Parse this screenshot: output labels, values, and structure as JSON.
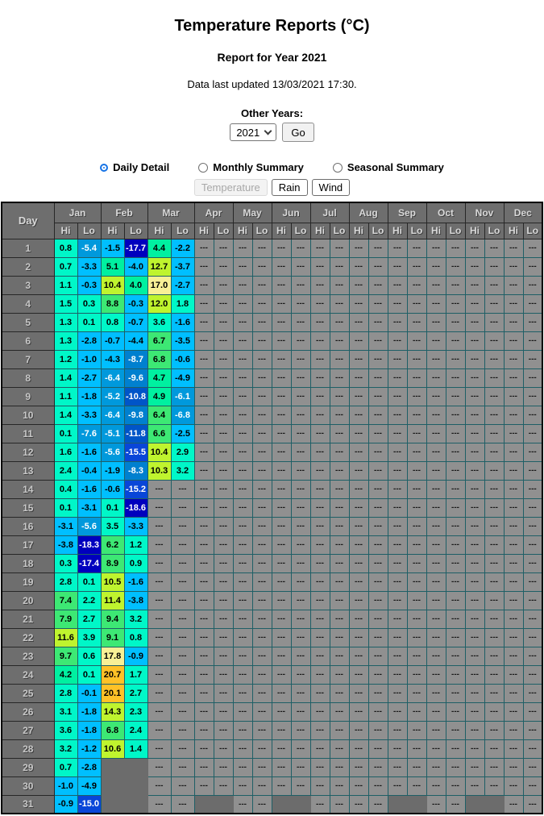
{
  "header": {
    "title": "Temperature Reports (°C)",
    "subtitle": "Report for Year 2021",
    "last_updated": "Data last updated 13/03/2021 17:30."
  },
  "controls": {
    "other_years_label": "Other Years:",
    "year_selected": "2021",
    "go_label": "Go",
    "radios": [
      {
        "label": "Daily Detail",
        "checked": true
      },
      {
        "label": "Monthly Summary",
        "checked": false
      },
      {
        "label": "Seasonal Summary",
        "checked": false
      }
    ],
    "view_buttons": [
      {
        "label": "Temperature",
        "disabled": true
      },
      {
        "label": "Rain",
        "disabled": false
      },
      {
        "label": "Wind",
        "disabled": false
      }
    ]
  },
  "table": {
    "day_label": "Day",
    "months": [
      "Jan",
      "Feb",
      "Mar",
      "Apr",
      "May",
      "Jun",
      "Jul",
      "Aug",
      "Sep",
      "Oct",
      "Nov",
      "Dec"
    ],
    "month_keys": [
      "jan",
      "feb",
      "mar",
      "apr",
      "may",
      "jun",
      "jul",
      "aug",
      "sep",
      "oct",
      "nov",
      "dec"
    ],
    "sub_headers": [
      "Hi",
      "Lo"
    ],
    "no_data_label": "---",
    "blank_days": {
      "feb": [
        29,
        30,
        31
      ],
      "apr": [
        31
      ],
      "jun": [
        31
      ],
      "sep": [
        31
      ],
      "nov": [
        31
      ]
    },
    "color_scale": [
      {
        "min": 20,
        "bg": "#FFC127",
        "fg": "#000000"
      },
      {
        "min": 16,
        "bg": "#F8F096",
        "fg": "#000000"
      },
      {
        "min": 10,
        "bg": "#BFF42E",
        "fg": "#000000"
      },
      {
        "min": 6,
        "bg": "#3DE874",
        "fg": "#000000"
      },
      {
        "min": 4,
        "bg": "#00F0A0",
        "fg": "#000000"
      },
      {
        "min": 0,
        "bg": "#00F7C8",
        "fg": "#000000"
      },
      {
        "min": -5,
        "bg": "#00BFFF",
        "fg": "#000000"
      },
      {
        "min": -8,
        "bg": "#0099DC",
        "fg": "#FFFFFF"
      },
      {
        "min": -10,
        "bg": "#0080CF",
        "fg": "#FFFFFF"
      },
      {
        "min": -13,
        "bg": "#0055C8",
        "fg": "#FFFFFF"
      },
      {
        "min": -16,
        "bg": "#0946D8",
        "fg": "#FFFFFF"
      },
      {
        "min": -99,
        "bg": "#0000BE",
        "fg": "#FFFFFF"
      }
    ],
    "rows": [
      {
        "day": 1,
        "jan": [
          0.8,
          -5.4
        ],
        "feb": [
          -1.5,
          -17.7
        ],
        "mar": [
          4.4,
          -2.2
        ]
      },
      {
        "day": 2,
        "jan": [
          0.7,
          -3.3
        ],
        "feb": [
          5.1,
          -4.0
        ],
        "mar": [
          12.7,
          -3.7
        ]
      },
      {
        "day": 3,
        "jan": [
          1.1,
          -0.3
        ],
        "feb": [
          10.4,
          4.0
        ],
        "mar": [
          17.0,
          -2.7
        ]
      },
      {
        "day": 4,
        "jan": [
          1.5,
          0.3
        ],
        "feb": [
          8.8,
          -0.3
        ],
        "mar": [
          12.0,
          1.8
        ]
      },
      {
        "day": 5,
        "jan": [
          1.3,
          0.1
        ],
        "feb": [
          0.8,
          -0.7
        ],
        "mar": [
          3.6,
          -1.6
        ]
      },
      {
        "day": 6,
        "jan": [
          1.3,
          -2.8
        ],
        "feb": [
          -0.7,
          -4.4
        ],
        "mar": [
          6.7,
          -3.5
        ]
      },
      {
        "day": 7,
        "jan": [
          1.2,
          -1.0
        ],
        "feb": [
          -4.3,
          -8.7
        ],
        "mar": [
          6.8,
          -0.6
        ]
      },
      {
        "day": 8,
        "jan": [
          1.4,
          -2.7
        ],
        "feb": [
          -6.4,
          -9.6
        ],
        "mar": [
          4.7,
          -4.9
        ]
      },
      {
        "day": 9,
        "jan": [
          1.1,
          -1.8
        ],
        "feb": [
          -5.2,
          -10.8
        ],
        "mar": [
          4.9,
          -6.1
        ]
      },
      {
        "day": 10,
        "jan": [
          1.4,
          -3.3
        ],
        "feb": [
          -6.4,
          -9.8
        ],
        "mar": [
          6.4,
          -6.8
        ]
      },
      {
        "day": 11,
        "jan": [
          0.1,
          -7.6
        ],
        "feb": [
          -5.1,
          -11.8
        ],
        "mar": [
          6.6,
          -2.5
        ]
      },
      {
        "day": 12,
        "jan": [
          1.6,
          -1.6
        ],
        "feb": [
          -5.6,
          -15.5
        ],
        "mar": [
          10.4,
          2.9
        ]
      },
      {
        "day": 13,
        "jan": [
          2.4,
          -0.4
        ],
        "feb": [
          -1.9,
          -8.3
        ],
        "mar": [
          10.3,
          3.2
        ]
      },
      {
        "day": 14,
        "jan": [
          0.4,
          -1.6
        ],
        "feb": [
          -0.6,
          -15.2
        ]
      },
      {
        "day": 15,
        "jan": [
          0.1,
          -3.1
        ],
        "feb": [
          0.1,
          -18.6
        ]
      },
      {
        "day": 16,
        "jan": [
          -3.1,
          -5.6
        ],
        "feb": [
          3.5,
          -3.3
        ]
      },
      {
        "day": 17,
        "jan": [
          -3.8,
          -18.3
        ],
        "feb": [
          6.2,
          1.2
        ]
      },
      {
        "day": 18,
        "jan": [
          0.3,
          -17.4
        ],
        "feb": [
          8.9,
          0.9
        ]
      },
      {
        "day": 19,
        "jan": [
          2.8,
          0.1
        ],
        "feb": [
          10.5,
          -1.6
        ]
      },
      {
        "day": 20,
        "jan": [
          7.4,
          2.2
        ],
        "feb": [
          11.4,
          -3.8
        ]
      },
      {
        "day": 21,
        "jan": [
          7.9,
          2.7
        ],
        "feb": [
          9.4,
          3.2
        ]
      },
      {
        "day": 22,
        "jan": [
          11.6,
          3.9
        ],
        "feb": [
          9.1,
          0.8
        ]
      },
      {
        "day": 23,
        "jan": [
          9.7,
          0.6
        ],
        "feb": [
          17.8,
          -0.9
        ]
      },
      {
        "day": 24,
        "jan": [
          4.2,
          0.1
        ],
        "feb": [
          20.7,
          1.7
        ]
      },
      {
        "day": 25,
        "jan": [
          2.8,
          -0.1
        ],
        "feb": [
          20.1,
          2.7
        ]
      },
      {
        "day": 26,
        "jan": [
          3.1,
          -1.8
        ],
        "feb": [
          14.3,
          2.3
        ]
      },
      {
        "day": 27,
        "jan": [
          3.6,
          -1.8
        ],
        "feb": [
          6.8,
          2.4
        ]
      },
      {
        "day": 28,
        "jan": [
          3.2,
          -1.2
        ],
        "feb": [
          10.6,
          1.4
        ]
      },
      {
        "day": 29,
        "jan": [
          0.7,
          -2.8
        ]
      },
      {
        "day": 30,
        "jan": [
          -1.0,
          -4.9
        ]
      },
      {
        "day": 31,
        "jan": [
          -0.9,
          -15.0
        ]
      }
    ]
  }
}
